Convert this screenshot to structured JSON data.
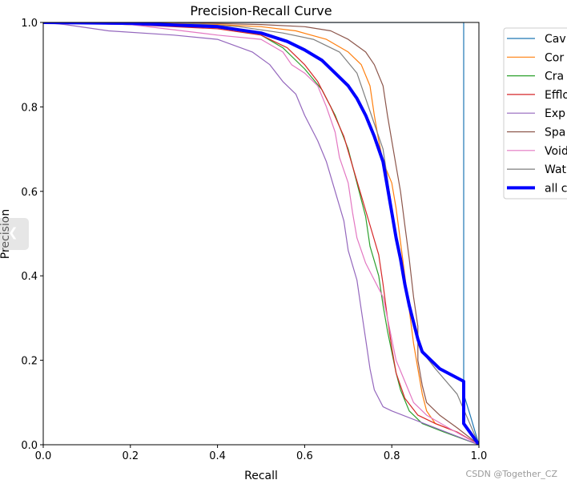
{
  "chart_data": {
    "type": "line",
    "title": "Precision-Recall Curve",
    "xlabel": "Recall",
    "ylabel": "Precision",
    "xlim": [
      0,
      1
    ],
    "ylim": [
      0,
      1
    ],
    "xticks": [
      "0.0",
      "0.2",
      "0.4",
      "0.6",
      "0.8",
      "1.0"
    ],
    "yticks": [
      "0.0",
      "0.2",
      "0.4",
      "0.6",
      "0.8",
      "1.0"
    ],
    "grid": false,
    "legend_position": "outside-right",
    "series": [
      {
        "name": "Cav",
        "color": "#1f77b4",
        "width": 1.2,
        "points": [
          [
            0,
            1
          ],
          [
            0.965,
            1
          ],
          [
            0.965,
            0.12
          ],
          [
            0.98,
            0.07
          ],
          [
            1,
            0
          ]
        ]
      },
      {
        "name": "Cor",
        "color": "#ff7f0e",
        "width": 1.2,
        "points": [
          [
            0,
            1
          ],
          [
            0.2,
            1
          ],
          [
            0.4,
            0.995
          ],
          [
            0.5,
            0.99
          ],
          [
            0.58,
            0.98
          ],
          [
            0.65,
            0.96
          ],
          [
            0.7,
            0.93
          ],
          [
            0.73,
            0.9
          ],
          [
            0.75,
            0.85
          ],
          [
            0.76,
            0.78
          ],
          [
            0.77,
            0.72
          ],
          [
            0.78,
            0.67
          ],
          [
            0.8,
            0.62
          ],
          [
            0.81,
            0.56
          ],
          [
            0.82,
            0.48
          ],
          [
            0.83,
            0.4
          ],
          [
            0.84,
            0.32
          ],
          [
            0.85,
            0.24
          ],
          [
            0.86,
            0.18
          ],
          [
            0.87,
            0.12
          ],
          [
            0.88,
            0.08
          ],
          [
            0.9,
            0.05
          ],
          [
            0.95,
            0.03
          ],
          [
            1,
            0
          ]
        ]
      },
      {
        "name": "Cra",
        "color": "#2ca02c",
        "width": 1.2,
        "points": [
          [
            0,
            1
          ],
          [
            0.2,
            0.995
          ],
          [
            0.4,
            0.99
          ],
          [
            0.5,
            0.97
          ],
          [
            0.55,
            0.94
          ],
          [
            0.6,
            0.89
          ],
          [
            0.64,
            0.84
          ],
          [
            0.67,
            0.78
          ],
          [
            0.7,
            0.7
          ],
          [
            0.72,
            0.62
          ],
          [
            0.74,
            0.54
          ],
          [
            0.75,
            0.47
          ],
          [
            0.77,
            0.4
          ],
          [
            0.78,
            0.33
          ],
          [
            0.79,
            0.27
          ],
          [
            0.8,
            0.22
          ],
          [
            0.81,
            0.17
          ],
          [
            0.82,
            0.13
          ],
          [
            0.84,
            0.08
          ],
          [
            0.87,
            0.05
          ],
          [
            0.92,
            0.03
          ],
          [
            1,
            0
          ]
        ]
      },
      {
        "name": "Efflo",
        "color": "#d62728",
        "width": 1.2,
        "points": [
          [
            0,
            1
          ],
          [
            0.2,
            0.995
          ],
          [
            0.4,
            0.985
          ],
          [
            0.5,
            0.97
          ],
          [
            0.56,
            0.94
          ],
          [
            0.6,
            0.9
          ],
          [
            0.63,
            0.86
          ],
          [
            0.66,
            0.8
          ],
          [
            0.69,
            0.73
          ],
          [
            0.71,
            0.66
          ],
          [
            0.73,
            0.59
          ],
          [
            0.75,
            0.52
          ],
          [
            0.77,
            0.45
          ],
          [
            0.78,
            0.38
          ],
          [
            0.79,
            0.3
          ],
          [
            0.8,
            0.23
          ],
          [
            0.81,
            0.17
          ],
          [
            0.83,
            0.11
          ],
          [
            0.86,
            0.07
          ],
          [
            0.9,
            0.05
          ],
          [
            0.95,
            0.03
          ],
          [
            1,
            0
          ]
        ]
      },
      {
        "name": "Exp",
        "color": "#9467bd",
        "width": 1.2,
        "points": [
          [
            0,
            1
          ],
          [
            0.05,
            0.995
          ],
          [
            0.15,
            0.98
          ],
          [
            0.3,
            0.97
          ],
          [
            0.4,
            0.96
          ],
          [
            0.48,
            0.93
          ],
          [
            0.52,
            0.9
          ],
          [
            0.55,
            0.86
          ],
          [
            0.58,
            0.83
          ],
          [
            0.6,
            0.78
          ],
          [
            0.63,
            0.72
          ],
          [
            0.65,
            0.67
          ],
          [
            0.67,
            0.6
          ],
          [
            0.69,
            0.53
          ],
          [
            0.7,
            0.46
          ],
          [
            0.72,
            0.39
          ],
          [
            0.73,
            0.32
          ],
          [
            0.74,
            0.25
          ],
          [
            0.75,
            0.18
          ],
          [
            0.76,
            0.13
          ],
          [
            0.78,
            0.09
          ],
          [
            0.8,
            0.08
          ],
          [
            0.9,
            0.04
          ],
          [
            1,
            0
          ]
        ]
      },
      {
        "name": "Spa",
        "color": "#8c564b",
        "width": 1.2,
        "points": [
          [
            0,
            1
          ],
          [
            0.3,
            1
          ],
          [
            0.5,
            0.995
          ],
          [
            0.6,
            0.99
          ],
          [
            0.66,
            0.98
          ],
          [
            0.7,
            0.96
          ],
          [
            0.74,
            0.93
          ],
          [
            0.76,
            0.9
          ],
          [
            0.78,
            0.85
          ],
          [
            0.79,
            0.78
          ],
          [
            0.8,
            0.72
          ],
          [
            0.81,
            0.66
          ],
          [
            0.82,
            0.6
          ],
          [
            0.83,
            0.52
          ],
          [
            0.84,
            0.44
          ],
          [
            0.85,
            0.35
          ],
          [
            0.86,
            0.28
          ],
          [
            0.86,
            0.2
          ],
          [
            0.87,
            0.14
          ],
          [
            0.88,
            0.1
          ],
          [
            0.91,
            0.07
          ],
          [
            0.95,
            0.04
          ],
          [
            1,
            0
          ]
        ]
      },
      {
        "name": "Void",
        "color": "#e377c2",
        "width": 1.2,
        "points": [
          [
            0,
            1
          ],
          [
            0.2,
            0.995
          ],
          [
            0.4,
            0.97
          ],
          [
            0.5,
            0.96
          ],
          [
            0.55,
            0.93
          ],
          [
            0.57,
            0.9
          ],
          [
            0.6,
            0.88
          ],
          [
            0.63,
            0.85
          ],
          [
            0.65,
            0.8
          ],
          [
            0.67,
            0.74
          ],
          [
            0.68,
            0.68
          ],
          [
            0.7,
            0.62
          ],
          [
            0.71,
            0.55
          ],
          [
            0.72,
            0.49
          ],
          [
            0.74,
            0.43
          ],
          [
            0.76,
            0.39
          ],
          [
            0.78,
            0.35
          ],
          [
            0.79,
            0.3
          ],
          [
            0.8,
            0.25
          ],
          [
            0.81,
            0.2
          ],
          [
            0.83,
            0.15
          ],
          [
            0.85,
            0.1
          ],
          [
            0.88,
            0.07
          ],
          [
            0.93,
            0.04
          ],
          [
            1,
            0
          ]
        ]
      },
      {
        "name": "Wat",
        "color": "#7f7f7f",
        "width": 1.2,
        "points": [
          [
            0,
            1
          ],
          [
            0.3,
            1
          ],
          [
            0.45,
            0.99
          ],
          [
            0.55,
            0.975
          ],
          [
            0.62,
            0.96
          ],
          [
            0.68,
            0.93
          ],
          [
            0.72,
            0.88
          ],
          [
            0.74,
            0.82
          ],
          [
            0.76,
            0.76
          ],
          [
            0.78,
            0.7
          ],
          [
            0.79,
            0.63
          ],
          [
            0.8,
            0.56
          ],
          [
            0.81,
            0.5
          ],
          [
            0.82,
            0.44
          ],
          [
            0.83,
            0.38
          ],
          [
            0.84,
            0.33
          ],
          [
            0.85,
            0.28
          ],
          [
            0.87,
            0.22
          ],
          [
            0.9,
            0.18
          ],
          [
            0.95,
            0.12
          ],
          [
            1,
            0
          ]
        ]
      },
      {
        "name": "all c",
        "color": "#0000ff",
        "width": 4,
        "points": [
          [
            0,
            1
          ],
          [
            0.2,
            0.998
          ],
          [
            0.4,
            0.99
          ],
          [
            0.5,
            0.975
          ],
          [
            0.56,
            0.955
          ],
          [
            0.6,
            0.935
          ],
          [
            0.64,
            0.91
          ],
          [
            0.67,
            0.88
          ],
          [
            0.7,
            0.85
          ],
          [
            0.72,
            0.82
          ],
          [
            0.74,
            0.78
          ],
          [
            0.76,
            0.73
          ],
          [
            0.78,
            0.67
          ],
          [
            0.79,
            0.61
          ],
          [
            0.8,
            0.55
          ],
          [
            0.81,
            0.49
          ],
          [
            0.82,
            0.44
          ],
          [
            0.83,
            0.38
          ],
          [
            0.84,
            0.33
          ],
          [
            0.85,
            0.29
          ],
          [
            0.86,
            0.25
          ],
          [
            0.87,
            0.22
          ],
          [
            0.88,
            0.21
          ],
          [
            0.91,
            0.18
          ],
          [
            0.965,
            0.15
          ],
          [
            0.965,
            0.05
          ],
          [
            1,
            0
          ]
        ]
      }
    ]
  },
  "watermark": "CSDN @Together_CZ"
}
